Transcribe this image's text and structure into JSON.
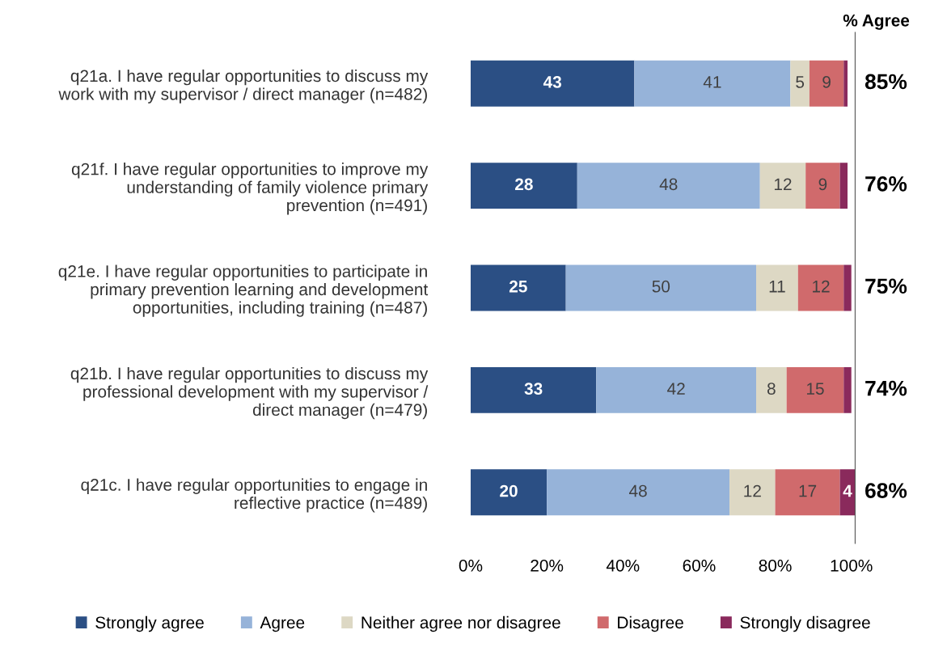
{
  "chart_data": {
    "type": "bar",
    "orientation": "horizontal",
    "stacked": true,
    "categories": [
      "q21a. I have regular opportunities to discuss my\nwork with my supervisor / direct manager (n=482)",
      "q21f. I have regular opportunities to improve my\nunderstanding of family violence primary\nprevention (n=491)",
      "q21e. I have regular opportunities to participate in\nprimary prevention learning and development\nopportunities, including training (n=487)",
      "q21b. I have regular opportunities to discuss my\nprofessional development with my supervisor /\ndirect manager (n=479)",
      "q21c. I have regular opportunities to engage in\nreflective practice (n=489)"
    ],
    "series": [
      {
        "name": "Strongly agree",
        "color": "#2b4f84",
        "values": [
          43,
          28,
          25,
          33,
          20
        ],
        "value_labels": [
          "43",
          "28",
          "25",
          "33",
          "20"
        ]
      },
      {
        "name": "Agree",
        "color": "#96b3d9",
        "values": [
          41,
          48,
          50,
          42,
          48
        ],
        "value_labels": [
          "41",
          "48",
          "50",
          "42",
          "48"
        ]
      },
      {
        "name": "Neither agree nor disagree",
        "color": "#ddd8c4",
        "values": [
          5,
          12,
          11,
          8,
          12
        ],
        "value_labels": [
          "5",
          "12",
          "11",
          "8",
          "12"
        ]
      },
      {
        "name": "Disagree",
        "color": "#d06a6c",
        "values": [
          9,
          9,
          12,
          15,
          17
        ],
        "value_labels": [
          "9",
          "9",
          "12",
          "15",
          "17"
        ]
      },
      {
        "name": "Strongly disagree",
        "color": "#8a2a5c",
        "values": [
          1,
          2,
          2,
          2,
          4
        ],
        "value_labels": [
          null,
          null,
          null,
          null,
          "4"
        ]
      }
    ],
    "xlim": [
      0,
      101
    ],
    "xticks": [
      {
        "value": 0,
        "label": "0%"
      },
      {
        "value": 20,
        "label": "20%"
      },
      {
        "value": 40,
        "label": "40%"
      },
      {
        "value": 60,
        "label": "60%"
      },
      {
        "value": 80,
        "label": "80%"
      },
      {
        "value": 100,
        "label": "100%"
      }
    ],
    "annotations": [
      "% Agree",
      "85%",
      "76%",
      "75%",
      "74%",
      "68%"
    ],
    "legend": "bottom",
    "grid": false
  }
}
